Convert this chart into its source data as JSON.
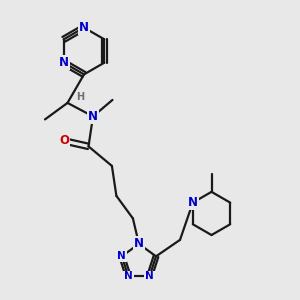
{
  "bg_color": "#e8e8e8",
  "bond_color": "#1a1a1a",
  "N_color": "#0000cc",
  "O_color": "#cc0000",
  "H_color": "#707070",
  "line_width": 1.6,
  "font_size_atom": 8.5,
  "font_size_small": 7.0,
  "xlim": [
    0,
    10
  ],
  "ylim": [
    0,
    10
  ]
}
